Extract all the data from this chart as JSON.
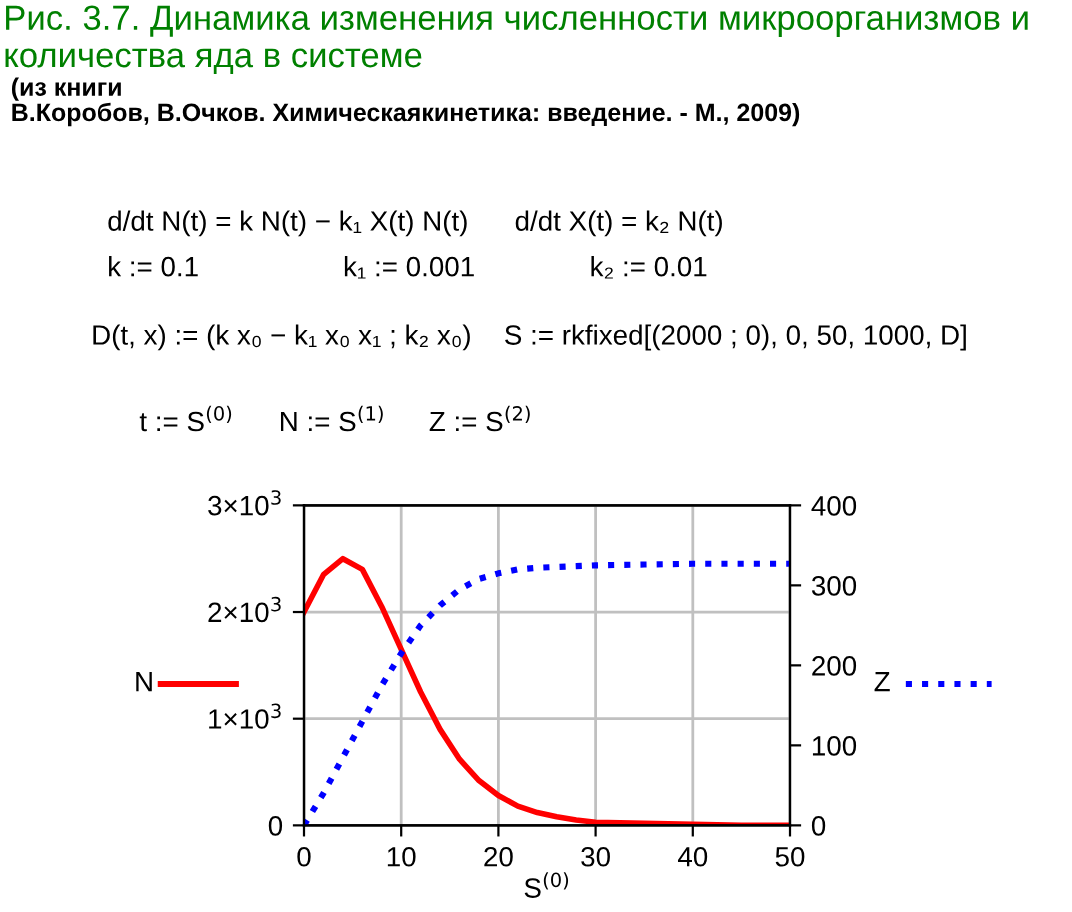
{
  "chart_data": {
    "type": "line",
    "title": "Рис. 3.7. Динамика изменения численности микроорганизмов и количества яда в системе",
    "subtitle": "(из книги\nВ.Коробов, В.Очков. Химическаякинетика: введение. - М., 2009)",
    "annotations": [
      "d/dt N(t) = k N(t) − k₁ X(t) N(t)",
      "d/dt X(t) = k₂ N(t)",
      "k := 0.1",
      "k₁ := 0.001",
      "k₂ := 0.01",
      "D(t, x) := (k x₀ − k₁ x₀ x₁ ; k₂ x₀)",
      "S := rkfixed[(2000 ; 0), 0, 50, 1000, D]",
      "t := S$^{(0)}$",
      "N := S$^{(1)}$",
      "Z := S$^{(2)}$"
    ],
    "xlabel": "S$^{(0)}$",
    "x": [
      0,
      2,
      4,
      6,
      8,
      10,
      12,
      14,
      16,
      18,
      20,
      22,
      24,
      26,
      28,
      30,
      35,
      40,
      45,
      50
    ],
    "series": [
      {
        "name": "N",
        "color": "#ff0000",
        "line_style": "solid",
        "values": [
          2000,
          2350,
          2500,
          2400,
          2050,
          1650,
          1250,
          900,
          620,
          420,
          280,
          180,
          120,
          80,
          50,
          30,
          20,
          10,
          0,
          0
        ]
      },
      {
        "name": "Z",
        "color": "#0000ff",
        "line_style": "dotted",
        "axis": "y2",
        "values": [
          0,
          40,
          85,
          130,
          175,
          215,
          250,
          275,
          295,
          308,
          315,
          320,
          322,
          323,
          324,
          325,
          326,
          327,
          327,
          327
        ]
      }
    ],
    "xlim": [
      0,
      50
    ],
    "xticks": [
      0,
      10,
      20,
      30,
      40,
      50
    ],
    "ylim": [
      0,
      3000
    ],
    "yticks": [
      0,
      {
        "value": 1000,
        "label": "1×10$^{3}$"
      },
      {
        "value": 2000,
        "label": "2×10$^{3}$"
      },
      {
        "value": 3000,
        "label": "3×10$^{3}$"
      }
    ],
    "y2lim": [
      0,
      400
    ],
    "y2ticks": [
      0,
      100,
      200,
      300,
      400
    ],
    "grid": true,
    "marker": "none",
    "legend": "left"
  }
}
